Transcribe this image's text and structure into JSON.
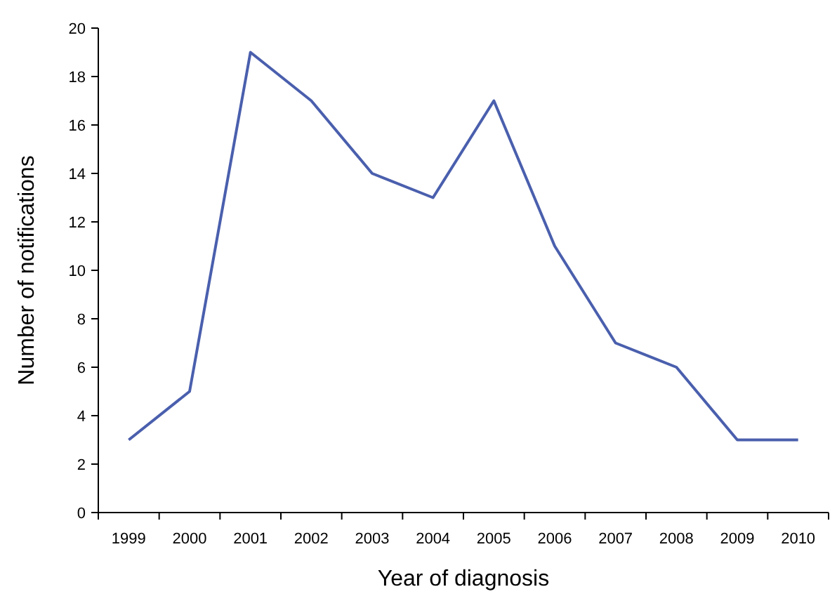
{
  "chart_data": {
    "type": "line",
    "xlabel": "Year of diagnosis",
    "ylabel": "Number of notifications",
    "categories": [
      "1999",
      "2000",
      "2001",
      "2002",
      "2003",
      "2004",
      "2005",
      "2006",
      "2007",
      "2008",
      "2009",
      "2010"
    ],
    "series": [
      {
        "color": "#4a5fad",
        "values": [
          3,
          5,
          19,
          17,
          14,
          13,
          17,
          11,
          7,
          6,
          3,
          3
        ]
      }
    ],
    "ylim": [
      0,
      20
    ],
    "yticks": [
      0,
      2,
      4,
      6,
      8,
      10,
      12,
      14,
      16,
      18,
      20
    ],
    "grid": false,
    "marker": "none",
    "line_style": "solid"
  }
}
